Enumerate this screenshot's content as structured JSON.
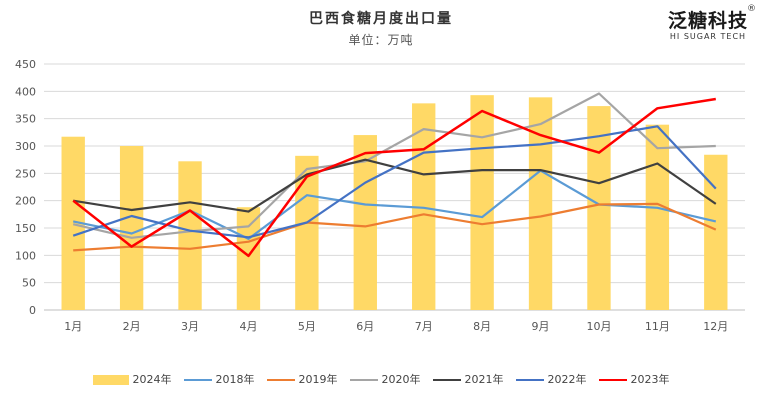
{
  "chart_data": {
    "type": "bar+line",
    "title": "巴西食糖月度出口量",
    "subtitle": "单位：万吨",
    "categories": [
      "1月",
      "2月",
      "3月",
      "4月",
      "5月",
      "6月",
      "7月",
      "8月",
      "9月",
      "10月",
      "11月",
      "12月"
    ],
    "ylim": [
      0,
      450
    ],
    "yticks": [
      0,
      50,
      100,
      150,
      200,
      250,
      300,
      350,
      400,
      450
    ],
    "bar_series": {
      "name": "2024年",
      "color": "#FFD966",
      "values": [
        317,
        300,
        272,
        188,
        282,
        320,
        378,
        393,
        389,
        373,
        339,
        284
      ]
    },
    "line_series": [
      {
        "name": "2018年",
        "color": "#5B9BD5",
        "values": [
          162,
          140,
          182,
          130,
          210,
          193,
          187,
          170,
          255,
          193,
          187,
          162
        ]
      },
      {
        "name": "2019年",
        "color": "#ED7D31",
        "values": [
          109,
          116,
          112,
          125,
          160,
          153,
          175,
          157,
          171,
          193,
          194,
          147
        ]
      },
      {
        "name": "2020年",
        "color": "#A5A5A5",
        "values": [
          157,
          132,
          144,
          153,
          258,
          272,
          331,
          316,
          340,
          396,
          296,
          300
        ]
      },
      {
        "name": "2021年",
        "color": "#404040",
        "values": [
          200,
          183,
          197,
          180,
          248,
          275,
          248,
          256,
          256,
          232,
          268,
          194
        ]
      },
      {
        "name": "2022年",
        "color": "#4472C4",
        "values": [
          136,
          172,
          145,
          133,
          160,
          233,
          288,
          296,
          303,
          318,
          336,
          222
        ]
      },
      {
        "name": "2023年",
        "color": "#FF0000",
        "values": [
          200,
          116,
          182,
          99,
          244,
          287,
          294,
          364,
          320,
          288,
          369,
          386
        ]
      }
    ]
  },
  "logo": {
    "main": "泛糖科技",
    "sub": "HI SUGAR TECH",
    "reg": "®"
  }
}
